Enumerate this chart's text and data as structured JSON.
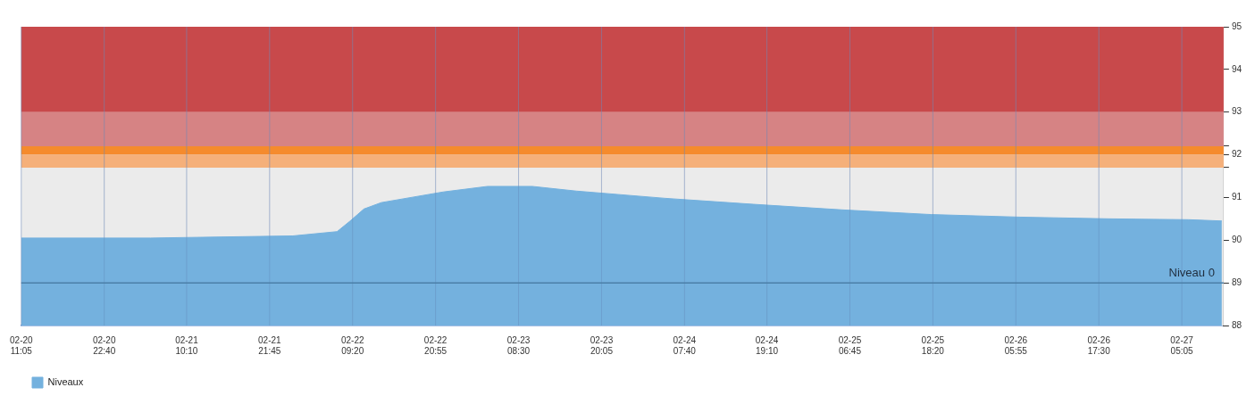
{
  "chart_data": {
    "type": "area",
    "xlim": [
      "--02-20T11:05",
      "--02-27T10:55"
    ],
    "xticks": [
      {
        "value": "--02-20T11:05",
        "label": "02-20 11:05"
      },
      {
        "value": "--02-20T22:40",
        "label": "02-20 22:40"
      },
      {
        "value": "--02-21T10:10",
        "label": "02-21 10:10"
      },
      {
        "value": "--02-21T21:45",
        "label": "02-21 21:45"
      },
      {
        "value": "--02-22T09:20",
        "label": "02-22 09:20"
      },
      {
        "value": "--02-22T20:55",
        "label": "02-22 20:55"
      },
      {
        "value": "--02-23T08:30",
        "label": "02-23 08:30"
      },
      {
        "value": "--02-23T20:05",
        "label": "02-23 20:05"
      },
      {
        "value": "--02-24T07:40",
        "label": "02-24 07:40"
      },
      {
        "value": "--02-24T19:10",
        "label": "02-24 19:10"
      },
      {
        "value": "--02-25T06:45",
        "label": "02-25 06:45"
      },
      {
        "value": "--02-25T18:20",
        "label": "02-25 18:20"
      },
      {
        "value": "--02-26T05:55",
        "label": "02-26 05:55"
      },
      {
        "value": "--02-26T17:30",
        "label": "02-26 17:30"
      },
      {
        "value": "--02-27T05:05",
        "label": "02-27 05:05"
      }
    ],
    "ylim": [
      88,
      95
    ],
    "yticks": [
      88,
      89,
      90,
      91,
      {
        "value": 91.7,
        "label": null
      },
      92,
      {
        "value": 92.2,
        "label": null
      },
      93,
      94,
      95
    ],
    "grid": "x",
    "legend": "bottom left",
    "series": [
      {
        "name": "Niveaux",
        "color": "#74b1de",
        "x": [
          "--02-20T11:05",
          "--02-21T05:10",
          "--02-22T01:00",
          "--02-22T07:10",
          "--02-22T09:00",
          "--02-22T10:55",
          "--02-22T13:20",
          "--02-22T22:00",
          "--02-23T04:10",
          "--02-23T10:25",
          "--02-23T16:35",
          "--02-24T05:00",
          "--02-24T17:20",
          "--02-25T05:40",
          "--02-25T18:05",
          "--02-26T06:30",
          "--02-26T18:50",
          "--02-27T06:00",
          "--02-27T10:40"
        ],
        "values": [
          90.05,
          90.05,
          90.1,
          90.2,
          90.45,
          90.73,
          90.88,
          91.13,
          91.26,
          91.26,
          91.15,
          90.98,
          90.84,
          90.71,
          90.6,
          90.54,
          90.5,
          90.48,
          90.45
        ]
      }
    ],
    "bands": [
      {
        "axis": "y",
        "from": 93,
        "to": 95,
        "color": "#c8494b"
      },
      {
        "axis": "y",
        "from": 92.2,
        "to": 93,
        "color": "#d68384"
      },
      {
        "axis": "y",
        "from": 92,
        "to": 92.2,
        "color": "#f58b2d"
      },
      {
        "axis": "y",
        "from": 91.7,
        "to": 92,
        "color": "#f5b07a"
      }
    ],
    "ref_lines": [
      {
        "axis": "y",
        "value": 89,
        "label": "Niveau 0",
        "color": "#4a7fa8",
        "line_style": "solid"
      }
    ]
  }
}
